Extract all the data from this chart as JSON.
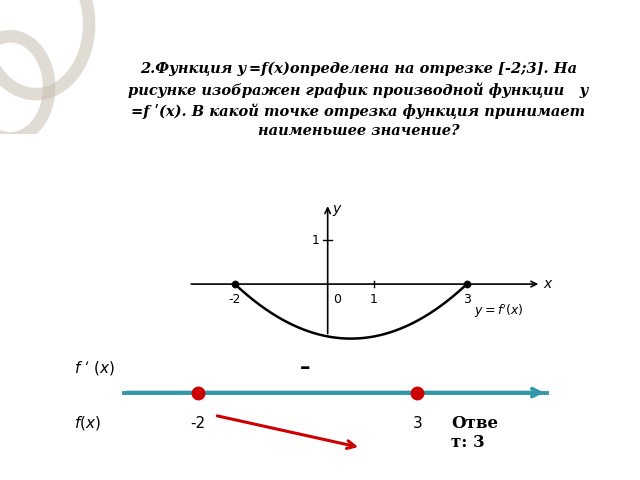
{
  "bg_color": "#ffffff",
  "curve_color": "#000000",
  "axis_color": "#000000",
  "number_line_color": "#3399aa",
  "dot_color": "#cc0000",
  "arrow_color": "#cc0000",
  "title1": "2.Функция ",
  "title1i": "y =f(x)",
  "title1b": " определена на отрезке ",
  "title1c": "[-2;3].",
  "title2": " На рисунке изображен график производной функции   у",
  "title3": "=f ʹ(x). В какой точке отрезка функция принимает",
  "title4": "наименьшее значение?",
  "label_deriv": "y = fʹ(x)",
  "fp_label": "f ʹ (x)",
  "fx_label": "f(x)",
  "minus_label": "–",
  "answer": "Отве\nт: 3",
  "dot_minus2": -2,
  "dot_3": 3
}
